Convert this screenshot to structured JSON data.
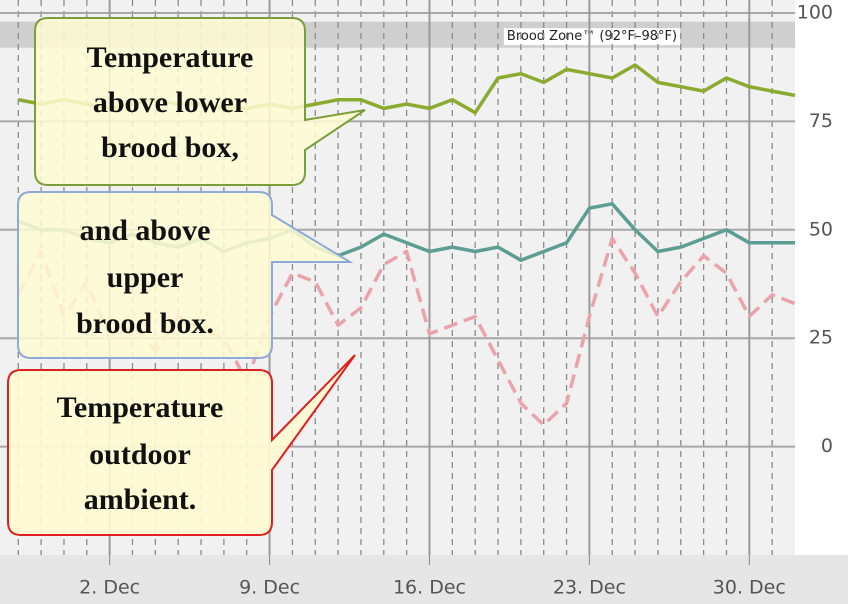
{
  "chart_data": {
    "type": "line",
    "x": [
      -2,
      -1,
      0,
      1,
      2,
      3,
      4,
      5,
      6,
      7,
      8,
      9,
      10,
      11,
      12,
      13,
      14,
      15,
      16,
      17,
      18,
      19,
      20,
      21,
      22,
      23,
      24,
      25,
      26,
      27,
      28,
      29,
      30,
      31,
      32
    ],
    "series": [
      {
        "color": "#8aab2f",
        "dash": false,
        "values": [
          80,
          79,
          80,
          79,
          78,
          79,
          80,
          79,
          79,
          78,
          78,
          79,
          78,
          79,
          80,
          80,
          78,
          79,
          78,
          80,
          77,
          85,
          86,
          84,
          87,
          86,
          85,
          88,
          84,
          83,
          82,
          85,
          83,
          82,
          81
        ]
      },
      {
        "color": "#5c9e93",
        "dash": false,
        "values": [
          52,
          50,
          50,
          48,
          47,
          49,
          47,
          46,
          48,
          45,
          47,
          48,
          50,
          46,
          44,
          46,
          49,
          47,
          45,
          46,
          45,
          46,
          43,
          45,
          47,
          55,
          56,
          50,
          45,
          46,
          48,
          50,
          47,
          47,
          47
        ]
      },
      {
        "color": "#eaa3aa",
        "dash": true,
        "values": [
          35,
          45,
          30,
          38,
          25,
          28,
          22,
          30,
          27,
          25,
          15,
          30,
          40,
          38,
          28,
          32,
          42,
          45,
          26,
          28,
          30,
          20,
          10,
          5,
          10,
          30,
          48,
          40,
          30,
          38,
          44,
          40,
          30,
          35,
          33
        ]
      }
    ],
    "xlim": [
      -2.8,
      32
    ],
    "xticks": [
      {
        "value": 2,
        "label": "2. Dec"
      },
      {
        "value": 9,
        "label": "9. Dec"
      },
      {
        "value": 16,
        "label": "16. Dec"
      },
      {
        "value": 23,
        "label": "23. Dec"
      },
      {
        "value": 30,
        "label": "30. Dec"
      }
    ],
    "ylim": [
      -25,
      103
    ],
    "yticks": [
      0,
      25,
      50,
      75,
      100
    ],
    "grid": true,
    "plot_band": {
      "from": 92,
      "to": 98,
      "label": "Brood Zone™ (92°F–98°F)"
    },
    "annotations": [
      {
        "lines": [
          "Temperature",
          "above lower",
          "brood box,"
        ]
      },
      {
        "lines": [
          "and above",
          "upper",
          "brood box."
        ]
      },
      {
        "lines": [
          "Temperature",
          "outdoor",
          "ambient."
        ]
      }
    ]
  }
}
